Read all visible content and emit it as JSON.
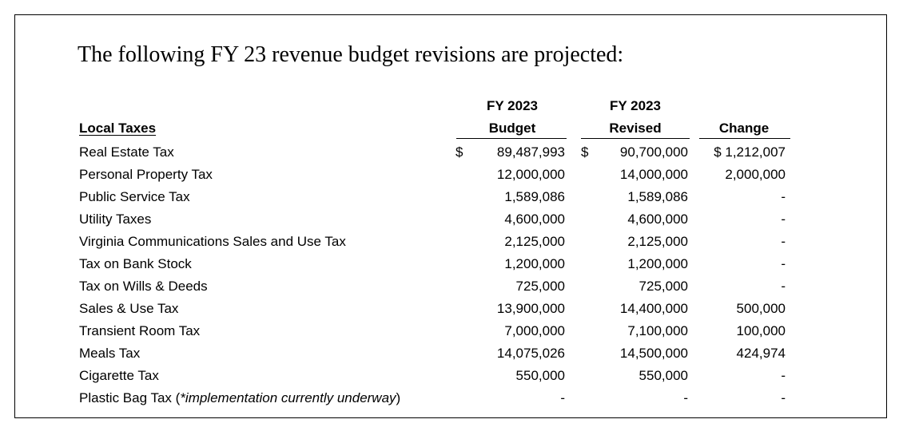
{
  "heading": "The following FY 23 revenue budget revisions are projected:",
  "columns": {
    "section_label": "Local Taxes",
    "budget_line1": "FY 2023",
    "budget_line2": "Budget",
    "revised_line1": "FY 2023",
    "revised_line2": "Revised",
    "change": "Change"
  },
  "currency_symbol": "$",
  "rows": [
    {
      "label": "Real Estate Tax",
      "budget": "89,487,993",
      "revised": "90,700,000",
      "change": "$ 1,212,007"
    },
    {
      "label": "Personal Property Tax",
      "budget": "12,000,000",
      "revised": "14,000,000",
      "change": "2,000,000"
    },
    {
      "label": "Public Service Tax",
      "budget": "1,589,086",
      "revised": "1,589,086",
      "change": "-"
    },
    {
      "label": "Utility Taxes",
      "budget": "4,600,000",
      "revised": "4,600,000",
      "change": "-"
    },
    {
      "label": "Virginia Communications Sales and Use Tax",
      "budget": "2,125,000",
      "revised": "2,125,000",
      "change": "-"
    },
    {
      "label": "Tax on Bank Stock",
      "budget": "1,200,000",
      "revised": "1,200,000",
      "change": "-"
    },
    {
      "label": "Tax on Wills & Deeds",
      "budget": "725,000",
      "revised": "725,000",
      "change": "-"
    },
    {
      "label": "Sales & Use Tax",
      "budget": "13,900,000",
      "revised": "14,400,000",
      "change": "500,000"
    },
    {
      "label": "Transient Room Tax",
      "budget": "7,000,000",
      "revised": "7,100,000",
      "change": "100,000"
    },
    {
      "label": "Meals Tax",
      "budget": "14,075,026",
      "revised": "14,500,000",
      "change": "424,974"
    },
    {
      "label": "Cigarette Tax",
      "budget": "550,000",
      "revised": "550,000",
      "change": "-"
    }
  ],
  "last_row": {
    "label_prefix": "Plastic Bag Tax (",
    "label_note": "*implementation currently underway",
    "label_suffix": ")",
    "budget": "-",
    "revised": "-",
    "change": "-"
  }
}
